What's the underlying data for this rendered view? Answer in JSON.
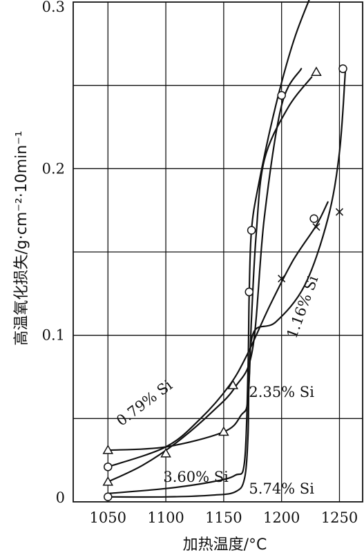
{
  "chart_data": {
    "type": "line",
    "xlabel": "加热温度/°C",
    "ylabel": "高温氧化损失/g·cm⁻²·10min⁻¹",
    "xlim": [
      1020,
      1270
    ],
    "ylim": [
      0,
      0.3
    ],
    "x_ticks": [
      {
        "value": 1050,
        "label": "1050"
      },
      {
        "value": 1100,
        "label": "1100"
      },
      {
        "value": 1150,
        "label": "1150"
      },
      {
        "value": 1200,
        "label": "1200"
      },
      {
        "value": 1250,
        "label": "1250"
      }
    ],
    "y_ticks": [
      {
        "value": 0,
        "label": "0"
      },
      {
        "value": 0.1,
        "label": "0.1"
      },
      {
        "value": 0.2,
        "label": "0.2"
      },
      {
        "value": 0.3,
        "label": "0.3"
      }
    ],
    "grid": true,
    "series": [
      {
        "name": "0.79% Si",
        "marker": "none",
        "label_angle": -37,
        "curve": [
          [
            1050,
            0.012
          ],
          [
            1080,
            0.022
          ],
          [
            1110,
            0.036
          ],
          [
            1140,
            0.054
          ],
          [
            1160,
            0.069
          ],
          [
            1175,
            0.092
          ],
          [
            1185,
            0.17
          ],
          [
            1200,
            0.238
          ],
          [
            1217,
            0.26
          ]
        ],
        "points": []
      },
      {
        "name": "2.35% Si",
        "marker": "triangle",
        "label_angle": 0,
        "curve": [
          [
            1050,
            0.031
          ],
          [
            1100,
            0.033
          ],
          [
            1150,
            0.042
          ],
          [
            1165,
            0.052
          ],
          [
            1171,
            0.062
          ],
          [
            1174,
            0.11
          ],
          [
            1178,
            0.16
          ],
          [
            1185,
            0.205
          ],
          [
            1205,
            0.236
          ],
          [
            1226,
            0.255
          ]
        ],
        "points": [
          [
            1050,
            0.031
          ],
          [
            1050,
            0.012
          ],
          [
            1100,
            0.029
          ],
          [
            1150,
            0.042
          ],
          [
            1158,
            0.07
          ],
          [
            1230,
            0.258
          ]
        ]
      },
      {
        "name": "1.16% Si",
        "marker": "cross",
        "label_angle": -70,
        "curve": [
          [
            1050,
            0.021
          ],
          [
            1100,
            0.033
          ],
          [
            1130,
            0.05
          ],
          [
            1155,
            0.07
          ],
          [
            1170,
            0.088
          ],
          [
            1190,
            0.118
          ],
          [
            1210,
            0.145
          ],
          [
            1230,
            0.166
          ],
          [
            1240,
            0.18
          ]
        ],
        "points": [
          [
            1200,
            0.134
          ],
          [
            1230,
            0.165
          ],
          [
            1250,
            0.174
          ]
        ]
      },
      {
        "name": "3.60% Si",
        "marker": "circle",
        "label_angle": 0,
        "curve": [
          [
            1050,
            0.005
          ],
          [
            1100,
            0.008
          ],
          [
            1140,
            0.012
          ],
          [
            1160,
            0.016
          ],
          [
            1168,
            0.024
          ],
          [
            1171,
            0.08
          ],
          [
            1172,
            0.125
          ],
          [
            1174,
            0.163
          ],
          [
            1180,
            0.19
          ],
          [
            1195,
            0.238
          ],
          [
            1212,
            0.28
          ],
          [
            1235,
            0.32
          ]
        ],
        "points": [
          [
            1050,
            0.021
          ],
          [
            1172,
            0.126
          ],
          [
            1174,
            0.163
          ],
          [
            1200,
            0.244
          ],
          [
            1228,
            0.17
          ],
          [
            1253,
            0.26
          ]
        ]
      },
      {
        "name": "5.74% Si",
        "marker": "circle",
        "label_angle": 0,
        "curve": [
          [
            1050,
            0.003
          ],
          [
            1100,
            0.003
          ],
          [
            1140,
            0.004
          ],
          [
            1160,
            0.006
          ],
          [
            1168,
            0.014
          ],
          [
            1171,
            0.04
          ],
          [
            1172,
            0.075
          ],
          [
            1176,
            0.102
          ],
          [
            1195,
            0.108
          ],
          [
            1220,
            0.13
          ],
          [
            1240,
            0.17
          ],
          [
            1250,
            0.21
          ],
          [
            1255,
            0.258
          ]
        ],
        "points": [
          [
            1050,
            0.003
          ]
        ]
      }
    ],
    "annotations": [
      {
        "text": "0.79% Si",
        "x": 1084,
        "y": 0.057
      },
      {
        "text": "2.35% Si",
        "x": 1200,
        "y": 0.063
      },
      {
        "text": "1.16% Si",
        "x": 1222,
        "y": 0.116
      },
      {
        "text": "3.60% Si",
        "x": 1126,
        "y": 0.012
      },
      {
        "text": "5.74% Si",
        "x": 1200,
        "y": 0.005
      }
    ]
  }
}
